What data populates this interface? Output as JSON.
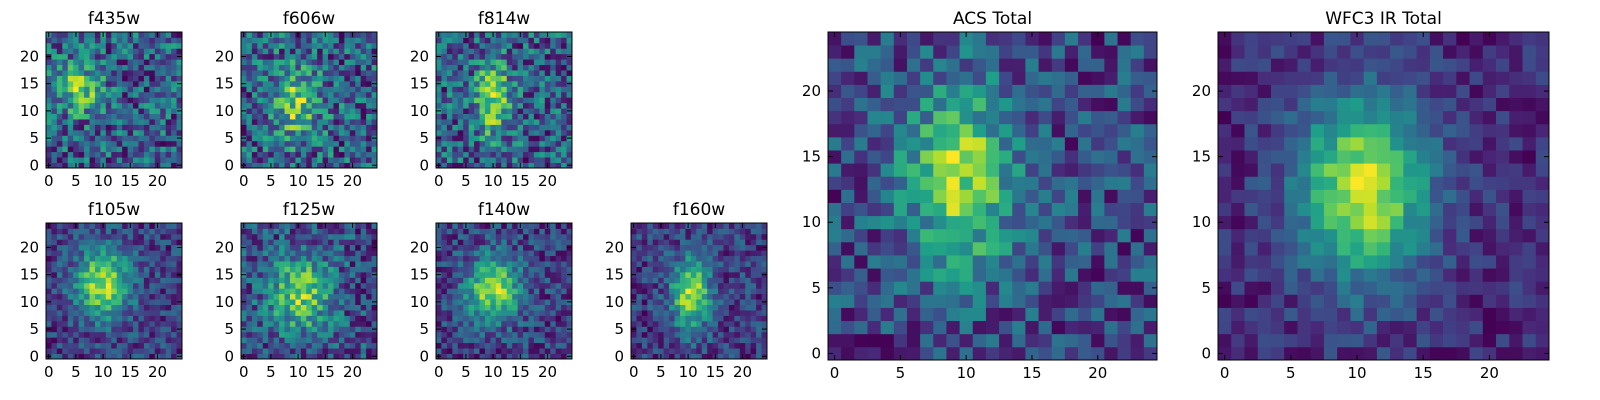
{
  "chart_data": [
    {
      "type": "heatmap",
      "title": "f435w",
      "size": 25,
      "colormap": "viridis",
      "xlim": [
        0,
        25
      ],
      "ylim": [
        0,
        25
      ],
      "xticks": [
        0,
        5,
        10,
        15,
        20
      ],
      "yticks": [
        0,
        5,
        10,
        15,
        20
      ],
      "peak": [
        6,
        14.5
      ],
      "sigma": [
        3,
        3
      ],
      "amplitude": 0.35,
      "noise": 0.22,
      "seed": 11
    },
    {
      "type": "heatmap",
      "title": "f606w",
      "size": 25,
      "colormap": "viridis",
      "xlim": [
        0,
        25
      ],
      "ylim": [
        0,
        25
      ],
      "xticks": [
        0,
        5,
        10,
        15,
        20
      ],
      "yticks": [
        0,
        5,
        10,
        15,
        20
      ],
      "peak": [
        10,
        12
      ],
      "sigma": [
        3,
        4.5
      ],
      "amplitude": 0.3,
      "noise": 0.2,
      "seed": 23
    },
    {
      "type": "heatmap",
      "title": "f814w",
      "size": 25,
      "colormap": "viridis",
      "xlim": [
        0,
        25
      ],
      "ylim": [
        0,
        25
      ],
      "xticks": [
        0,
        5,
        10,
        15,
        20
      ],
      "yticks": [
        0,
        5,
        10,
        15,
        20
      ],
      "peak": [
        10.5,
        13
      ],
      "sigma": [
        2.2,
        5
      ],
      "amplitude": 0.35,
      "noise": 0.2,
      "seed": 37
    },
    {
      "type": "heatmap",
      "title": "f105w",
      "size": 25,
      "colormap": "viridis",
      "xlim": [
        0,
        25
      ],
      "ylim": [
        0,
        25
      ],
      "xticks": [
        0,
        5,
        10,
        15,
        20
      ],
      "yticks": [
        0,
        5,
        10,
        15,
        20
      ],
      "peak": [
        10.5,
        14
      ],
      "sigma": [
        3.5,
        4.5
      ],
      "amplitude": 0.45,
      "noise": 0.12,
      "seed": 41
    },
    {
      "type": "heatmap",
      "title": "f125w",
      "size": 25,
      "colormap": "viridis",
      "xlim": [
        0,
        25
      ],
      "ylim": [
        0,
        25
      ],
      "xticks": [
        0,
        5,
        10,
        15,
        20
      ],
      "yticks": [
        0,
        5,
        10,
        15,
        20
      ],
      "peak": [
        11,
        12
      ],
      "sigma": [
        4,
        5
      ],
      "amplitude": 0.35,
      "noise": 0.16,
      "seed": 53
    },
    {
      "type": "heatmap",
      "title": "f140w",
      "size": 25,
      "colormap": "viridis",
      "xlim": [
        0,
        25
      ],
      "ylim": [
        0,
        25
      ],
      "xticks": [
        0,
        5,
        10,
        15,
        20
      ],
      "yticks": [
        0,
        5,
        10,
        15,
        20
      ],
      "peak": [
        10.5,
        13
      ],
      "sigma": [
        3.5,
        4
      ],
      "amplitude": 0.45,
      "noise": 0.13,
      "seed": 67
    },
    {
      "type": "heatmap",
      "title": "f160w",
      "size": 25,
      "colormap": "viridis",
      "xlim": [
        0,
        25
      ],
      "ylim": [
        0,
        25
      ],
      "xticks": [
        0,
        5,
        10,
        15,
        20
      ],
      "yticks": [
        0,
        5,
        10,
        15,
        20
      ],
      "peak": [
        11,
        12
      ],
      "sigma": [
        2.5,
        4.5
      ],
      "amplitude": 0.45,
      "noise": 0.12,
      "seed": 79
    },
    {
      "type": "heatmap",
      "title": "ACS Total",
      "size": 25,
      "colormap": "viridis",
      "xlim": [
        0,
        25
      ],
      "ylim": [
        0,
        25
      ],
      "xticks": [
        0,
        5,
        10,
        15,
        20
      ],
      "yticks": [
        0,
        5,
        10,
        15,
        20
      ],
      "peak": [
        10,
        14
      ],
      "sigma": [
        3,
        5
      ],
      "amplitude": 0.4,
      "noise": 0.14,
      "seed": 97
    },
    {
      "type": "heatmap",
      "title": "WFC3 IR Total",
      "size": 25,
      "colormap": "viridis",
      "xlim": [
        0,
        25
      ],
      "ylim": [
        0,
        25
      ],
      "xticks": [
        0,
        5,
        10,
        15,
        20
      ],
      "yticks": [
        0,
        5,
        10,
        15,
        20
      ],
      "peak": [
        11,
        13
      ],
      "sigma": [
        3.5,
        5
      ],
      "amplitude": 0.45,
      "noise": 0.07,
      "seed": 113
    }
  ]
}
